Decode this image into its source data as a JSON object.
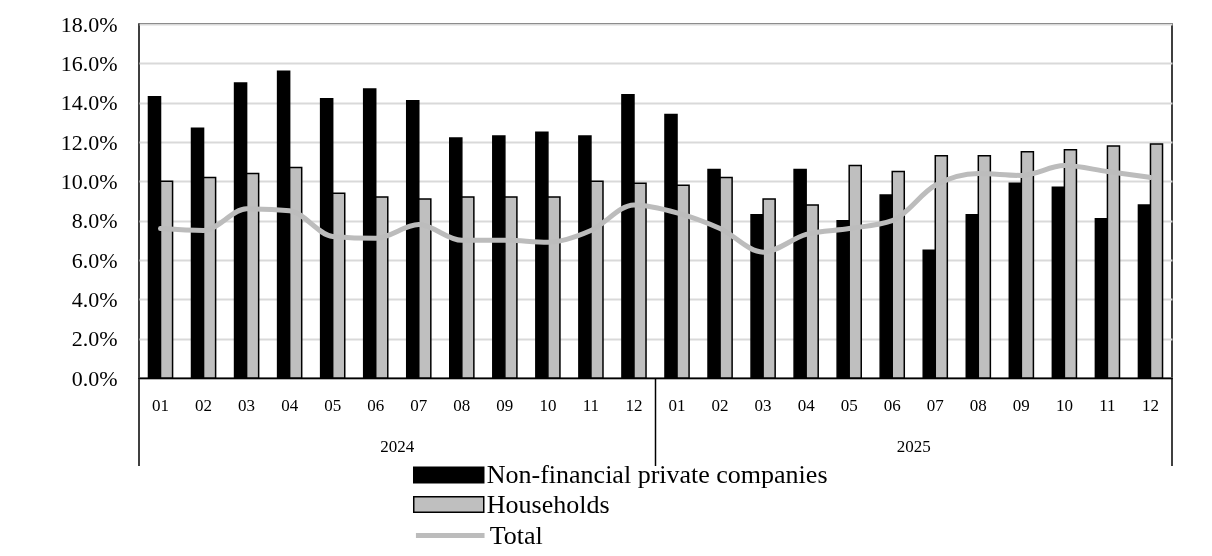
{
  "chart_data": {
    "type": "bar",
    "categories": [
      "01",
      "02",
      "03",
      "04",
      "05",
      "06",
      "07",
      "08",
      "09",
      "10",
      "11",
      "12",
      "01",
      "02",
      "03",
      "04",
      "05",
      "06",
      "07",
      "08",
      "09",
      "10",
      "11",
      "12"
    ],
    "annotations": [
      "2024",
      "2025"
    ],
    "series": [
      {
        "name": "Non-financial private companies",
        "color": "#000000",
        "values": [
          14.3,
          12.7,
          15.0,
          15.6,
          14.2,
          14.7,
          14.1,
          12.2,
          12.3,
          12.5,
          12.3,
          14.4,
          13.4,
          10.6,
          8.3,
          10.6,
          8.0,
          9.3,
          6.5,
          8.3,
          9.9,
          9.7,
          8.1,
          8.8
        ]
      },
      {
        "name": "Households",
        "color": "#bfbfbf",
        "values": [
          10.0,
          10.2,
          10.4,
          10.7,
          9.4,
          9.2,
          9.1,
          9.2,
          9.2,
          9.2,
          10.0,
          9.9,
          9.8,
          10.2,
          9.1,
          8.8,
          10.8,
          10.5,
          11.3,
          11.3,
          11.5,
          11.6,
          11.8,
          11.9
        ]
      },
      {
        "name": "Total",
        "type": "line",
        "color": "#bcbcbc",
        "values": [
          7.6,
          7.5,
          8.6,
          8.5,
          7.2,
          7.1,
          7.8,
          7.0,
          7.0,
          6.9,
          7.5,
          8.8,
          8.4,
          7.6,
          6.4,
          7.3,
          7.6,
          8.0,
          9.8,
          10.4,
          10.3,
          10.8,
          10.5,
          10.2
        ]
      }
    ],
    "ylim": [
      0,
      18
    ],
    "yticks": [
      {
        "value": 0,
        "label": "0.0%"
      },
      {
        "value": 2,
        "label": "2.0%"
      },
      {
        "value": 4,
        "label": "4.0%"
      },
      {
        "value": 6,
        "label": "6.0%"
      },
      {
        "value": 8,
        "label": "8.0%"
      },
      {
        "value": 10,
        "label": "10.0%"
      },
      {
        "value": 12,
        "label": "12.0%"
      },
      {
        "value": 14,
        "label": "14.0%"
      },
      {
        "value": 16,
        "label": "16.0%"
      },
      {
        "value": 18,
        "label": "18.0%"
      }
    ],
    "grid": "y",
    "legend": "bottom"
  }
}
